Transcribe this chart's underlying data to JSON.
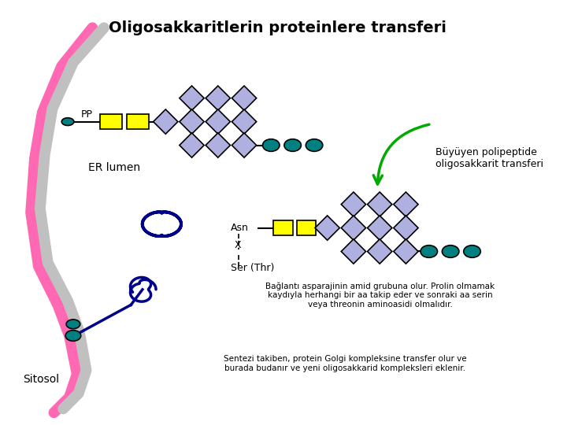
{
  "title": "Oligosakkaritlerin proteinlere transferi",
  "title_fontsize": 14,
  "title_fontweight": "bold",
  "bg_color": "#ffffff",
  "pink_color": "#ff69b4",
  "gray_color": "#c0c0c0",
  "teal_color": "#008080",
  "yellow_color": "#ffff00",
  "lavender_color": "#b0b0e0",
  "blue_dark": "#00008b",
  "text_color": "#000000",
  "arrow_color": "#00aa00",
  "label_PP": "PP",
  "label_ER": "ER lumen",
  "label_Sitosol": "Sitosol",
  "label_Asn": "Asn",
  "label_X": "X",
  "label_Ser": "Ser (Thr)",
  "label_transfer": "Büyüyen polipeptide\noligosakkarit transferi",
  "label_baglanty": "Bağlantı asparajinin amid grubuna olur. Prolin olmamak\nkaydıyla herhangi bir aa takip eder ve sonraki aa serin\nveya threonin aminoasidi olmalıdır.",
  "label_sentezi": "Sentezi takiben, protein Golgi kompleksine transfer olur ve\nburada budanır ve yeni oligosakkarid kompleksleri eklenir."
}
